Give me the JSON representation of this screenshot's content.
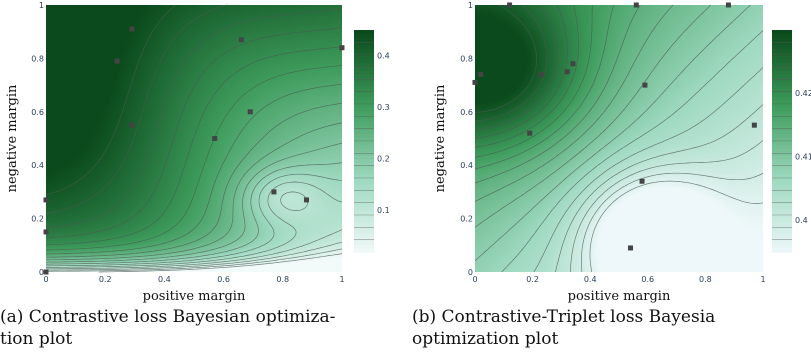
{
  "captions": {
    "left": {
      "line1": "(a) Contrastive loss Bayesian optimiza-",
      "line2": "tion plot"
    },
    "right": {
      "line1": "(b)  Contrastive-Triplet  loss  Bayesia",
      "line2": "optimization plot"
    }
  },
  "chart_data": [
    {
      "type": "contour",
      "xlabel": "positive margin",
      "ylabel": "negative margin",
      "xlim": [
        0,
        1
      ],
      "ylim": [
        0,
        1
      ],
      "xticks": [
        "0",
        "0.2",
        "0.4",
        "0.6",
        "0.8",
        "1"
      ],
      "yticks": [
        "0",
        "0.2",
        "0.4",
        "0.6",
        "0.8",
        "1"
      ],
      "colorbar_ticks": [
        {
          "label": "0.1",
          "value": 0.1
        },
        {
          "label": "0.2",
          "value": 0.2
        },
        {
          "label": "0.3",
          "value": 0.3
        },
        {
          "label": "0.4",
          "value": 0.4
        }
      ],
      "zrange": [
        0.02,
        0.45
      ],
      "colorscale": [
        "#f2fafa",
        "#9ed9c0",
        "#3e9c5c",
        "#0b4a1c"
      ],
      "points": [
        {
          "x": 0.0,
          "y": 0.0
        },
        {
          "x": 0.0,
          "y": 0.27
        },
        {
          "x": 0.0,
          "y": 0.15
        },
        {
          "x": 0.29,
          "y": 0.91
        },
        {
          "x": 0.24,
          "y": 0.79
        },
        {
          "x": 0.29,
          "y": 0.55
        },
        {
          "x": 0.66,
          "y": 0.87
        },
        {
          "x": 0.69,
          "y": 0.6
        },
        {
          "x": 0.57,
          "y": 0.5
        },
        {
          "x": 0.77,
          "y": 0.3
        },
        {
          "x": 0.88,
          "y": 0.27
        },
        {
          "x": 1.0,
          "y": 0.84
        }
      ]
    },
    {
      "type": "contour",
      "xlabel": "positive margin",
      "ylabel": "negative margin",
      "xlim": [
        0,
        1
      ],
      "ylim": [
        0,
        1
      ],
      "xticks": [
        "0",
        "0.2",
        "0.4",
        "0.6",
        "0.8",
        "1"
      ],
      "yticks": [
        "0",
        "0.2",
        "0.4",
        "0.6",
        "0.8",
        "1"
      ],
      "colorbar_ticks": [
        {
          "label": "0.4",
          "value": 0.4
        },
        {
          "label": "0.41",
          "value": 0.41
        },
        {
          "label": "0.42",
          "value": 0.42
        }
      ],
      "zrange": [
        0.395,
        0.43
      ],
      "colorscale": [
        "#eef8fa",
        "#9ed9c0",
        "#3e9c5c",
        "#0b4a1c"
      ],
      "points": [
        {
          "x": 0.02,
          "y": 0.74
        },
        {
          "x": 0.0,
          "y": 0.71
        },
        {
          "x": 0.23,
          "y": 0.74
        },
        {
          "x": 0.32,
          "y": 0.75
        },
        {
          "x": 0.34,
          "y": 0.78
        },
        {
          "x": 0.19,
          "y": 0.52
        },
        {
          "x": 0.59,
          "y": 0.7
        },
        {
          "x": 0.58,
          "y": 0.34
        },
        {
          "x": 0.54,
          "y": 0.09
        },
        {
          "x": 0.97,
          "y": 0.55
        },
        {
          "x": 0.12,
          "y": 1.0
        },
        {
          "x": 0.56,
          "y": 1.0
        },
        {
          "x": 0.88,
          "y": 1.0
        }
      ]
    }
  ]
}
